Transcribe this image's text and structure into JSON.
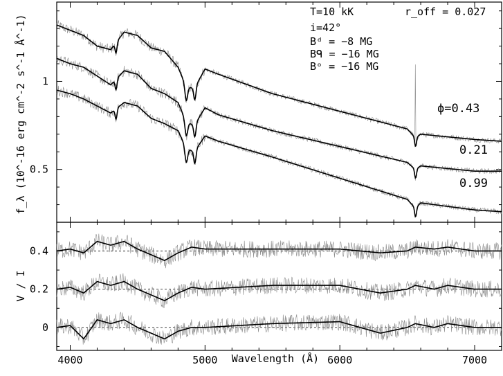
{
  "chart_data": [
    {
      "type": "line",
      "panel": "flux",
      "ylabel": "f_λ (10^-16 erg cm^-2 s^-1 Å^-1)",
      "ylim": [
        0.2,
        1.45
      ],
      "xlim": [
        3900,
        7200
      ],
      "yticks": [
        0.5,
        1
      ],
      "ytick_labels": [
        "0.5",
        "1"
      ],
      "annotations": {
        "T": "T=10 kK",
        "i": "i=42°",
        "Bd": "Bᵈ = −8 MG",
        "Bq": "Bᑫ = −16 MG",
        "Bo": "Bᵒ = −16 MG",
        "roff": "r_off = 0.027"
      },
      "series": [
        {
          "name": "ϕ=0.43",
          "x": [
            3900,
            4000,
            4100,
            4200,
            4300,
            4400,
            4500,
            4600,
            4700,
            4800,
            4860,
            4920,
            5000,
            5100,
            5500,
            6000,
            6500,
            6560,
            6600,
            7000,
            7200
          ],
          "y": [
            1.32,
            1.29,
            1.26,
            1.2,
            1.18,
            1.28,
            1.26,
            1.19,
            1.17,
            1.08,
            0.97,
            0.96,
            1.07,
            1.04,
            0.93,
            0.83,
            0.73,
            0.68,
            0.7,
            0.67,
            0.66
          ]
        },
        {
          "name": "0.21",
          "x": [
            3900,
            4000,
            4100,
            4200,
            4300,
            4400,
            4500,
            4600,
            4700,
            4800,
            4860,
            4920,
            5000,
            5100,
            5500,
            6000,
            6500,
            6560,
            6600,
            7000,
            7200
          ],
          "y": [
            1.13,
            1.1,
            1.08,
            1.03,
            0.98,
            1.06,
            1.04,
            0.96,
            0.93,
            0.88,
            0.77,
            0.75,
            0.85,
            0.81,
            0.72,
            0.63,
            0.54,
            0.5,
            0.52,
            0.49,
            0.49
          ]
        },
        {
          "name": "0.99",
          "x": [
            3900,
            4000,
            4100,
            4200,
            4300,
            4400,
            4500,
            4600,
            4700,
            4800,
            4860,
            4920,
            5000,
            5100,
            5500,
            6000,
            6500,
            6560,
            6600,
            7000,
            7200
          ],
          "y": [
            0.95,
            0.93,
            0.9,
            0.86,
            0.82,
            0.88,
            0.86,
            0.79,
            0.76,
            0.72,
            0.62,
            0.6,
            0.69,
            0.66,
            0.57,
            0.45,
            0.33,
            0.28,
            0.31,
            0.27,
            0.26
          ]
        }
      ]
    },
    {
      "type": "line",
      "panel": "polarization",
      "xlabel": "Wavelength (Å)",
      "ylabel": "V / I",
      "ylim": [
        -0.12,
        0.55
      ],
      "xlim": [
        3900,
        7200
      ],
      "xticks": [
        4000,
        5000,
        6000,
        7000
      ],
      "xtick_labels": [
        "4000",
        "5000",
        "6000",
        "7000"
      ],
      "yticks": [
        0,
        0.2,
        0.4
      ],
      "ytick_labels": [
        "0",
        "0.2",
        "0.4"
      ],
      "offsets": [
        0.4,
        0.2,
        0
      ],
      "series": [
        {
          "name": "ϕ=0.43",
          "offset": 0.4,
          "x": [
            3900,
            4000,
            4100,
            4200,
            4300,
            4400,
            4500,
            4600,
            4700,
            4800,
            4900,
            5000,
            5500,
            6000,
            6300,
            6500,
            6560,
            6700,
            6800,
            7000,
            7200
          ],
          "y": [
            0.4,
            0.41,
            0.39,
            0.45,
            0.43,
            0.45,
            0.41,
            0.38,
            0.35,
            0.39,
            0.42,
            0.41,
            0.41,
            0.41,
            0.39,
            0.4,
            0.42,
            0.41,
            0.42,
            0.4,
            0.4
          ]
        },
        {
          "name": "0.21",
          "offset": 0.2,
          "x": [
            3900,
            4000,
            4100,
            4200,
            4300,
            4400,
            4500,
            4600,
            4700,
            4800,
            4900,
            5000,
            5500,
            6000,
            6300,
            6500,
            6560,
            6700,
            6800,
            7000,
            7200
          ],
          "y": [
            0.2,
            0.21,
            0.18,
            0.24,
            0.22,
            0.24,
            0.2,
            0.17,
            0.14,
            0.18,
            0.21,
            0.2,
            0.22,
            0.22,
            0.18,
            0.2,
            0.22,
            0.2,
            0.22,
            0.2,
            0.2
          ]
        },
        {
          "name": "0.99",
          "offset": 0,
          "x": [
            3900,
            4000,
            4100,
            4200,
            4300,
            4400,
            4500,
            4600,
            4700,
            4800,
            4900,
            5000,
            5500,
            6000,
            6300,
            6500,
            6560,
            6700,
            6800,
            7000,
            7200
          ],
          "y": [
            0.0,
            0.01,
            -0.06,
            0.04,
            0.02,
            0.04,
            0.0,
            -0.03,
            -0.06,
            -0.02,
            0.0,
            0.0,
            0.02,
            0.03,
            -0.03,
            0.0,
            0.02,
            0.0,
            0.02,
            0.0,
            0.0
          ]
        }
      ]
    }
  ],
  "labels": {
    "ylabel_top": "f_λ (10^-16 erg cm^-2 s^-1 Å^-1)",
    "ylabel_bottom": "V / I",
    "xlabel": "Wavelength (Å)"
  }
}
